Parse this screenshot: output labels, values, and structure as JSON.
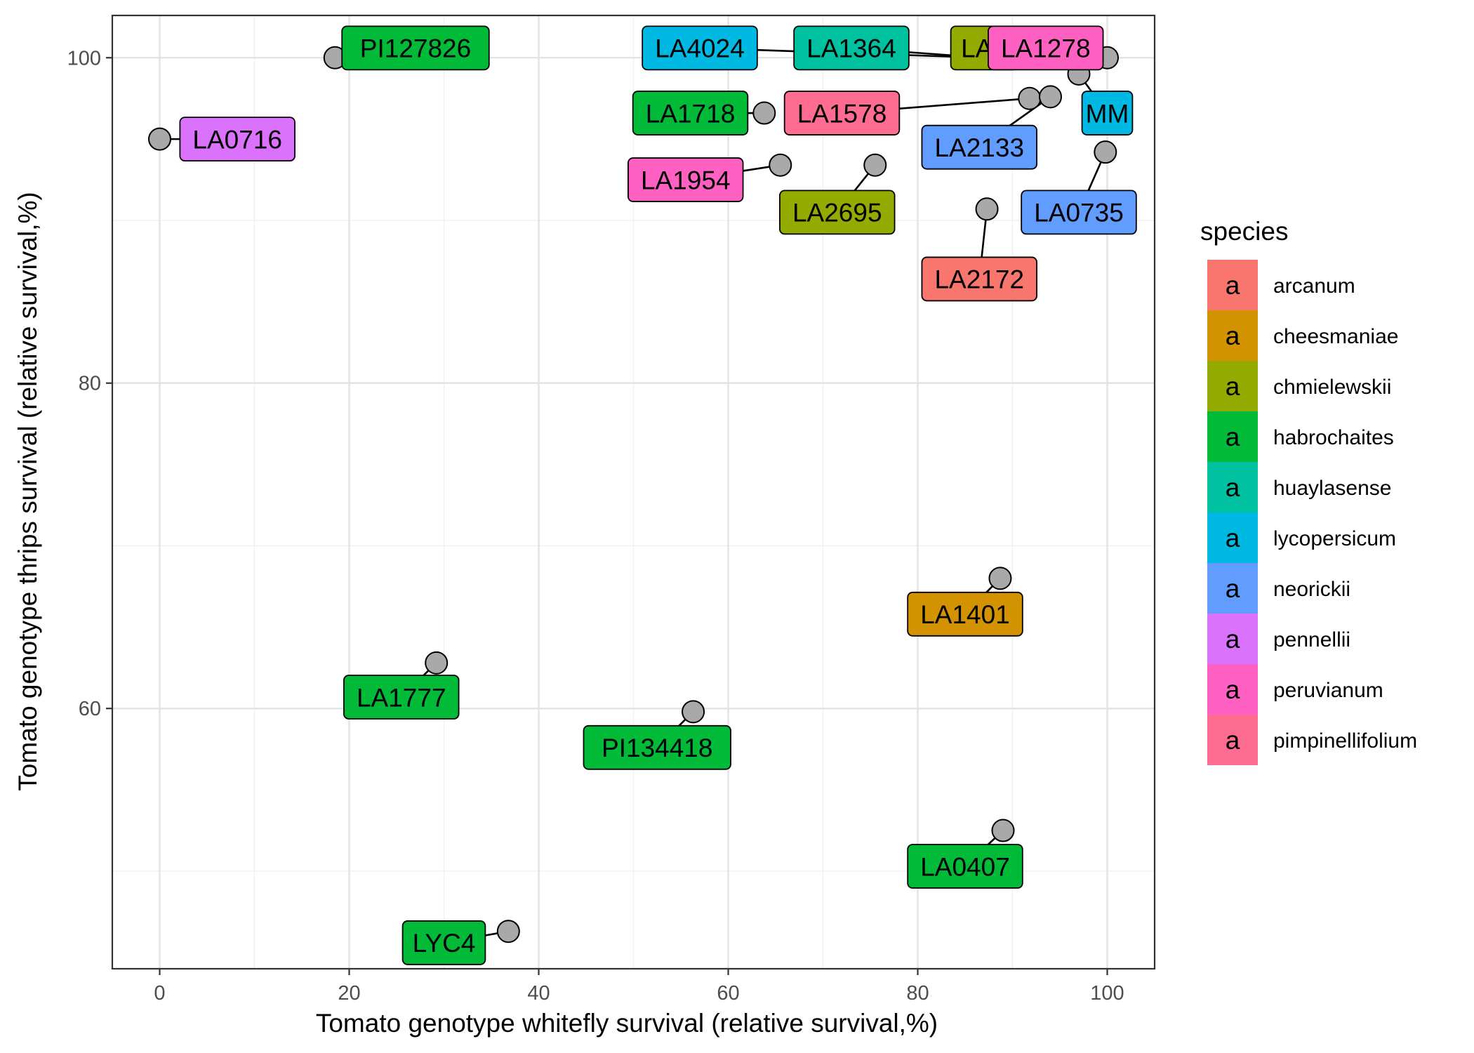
{
  "chart_data": {
    "type": "scatter",
    "title": "",
    "xlabel": "Tomato genotype whitefly survival (relative survival,%)",
    "ylabel": "Tomato genotype thrips survival (relative survival,%)",
    "xlim": [
      -5,
      105
    ],
    "ylim": [
      44,
      102.6
    ],
    "x_ticks": [
      0,
      20,
      40,
      60,
      80,
      100
    ],
    "y_ticks": [
      60,
      80,
      100
    ],
    "grid": true,
    "legend": {
      "title": "species",
      "position": "right",
      "key_glyph": "a",
      "entries": [
        {
          "name": "arcanum",
          "color": "#F8766D"
        },
        {
          "name": "cheesmaniae",
          "color": "#D39200"
        },
        {
          "name": "chmielewskii",
          "color": "#93AA00"
        },
        {
          "name": "habrochaites",
          "color": "#00BA38"
        },
        {
          "name": "huaylasense",
          "color": "#00C19F"
        },
        {
          "name": "lycopersicum",
          "color": "#00B9E3"
        },
        {
          "name": "neorickii",
          "color": "#619CFF"
        },
        {
          "name": "pennellii",
          "color": "#DB72FB"
        },
        {
          "name": "peruvianum",
          "color": "#FF61C3"
        },
        {
          "name": "pimpinellifolium",
          "color": "#FF6C91"
        }
      ]
    },
    "point_color": "#a9a9a9",
    "points": [
      {
        "label": "PI127826",
        "species": "habrochaites",
        "x": 18.5,
        "y": 100.0,
        "lx": 27.0,
        "ly": 100.6
      },
      {
        "label": "LA0716",
        "species": "pennellii",
        "x": 0.0,
        "y": 95.0,
        "lx": 8.2,
        "ly": 95.0
      },
      {
        "label": "LA4024",
        "species": "lycopersicum",
        "x": 87.0,
        "y": 100.0,
        "lx": 57.0,
        "ly": 100.6
      },
      {
        "label": "LA1364",
        "species": "huaylasense",
        "x": 87.0,
        "y": 100.0,
        "lx": 73.0,
        "ly": 100.6
      },
      {
        "label": "LA1",
        "species": "chmielewskii",
        "x": 87.0,
        "y": 100.0,
        "lx": 87.0,
        "ly": 100.6
      },
      {
        "label": "LA1278",
        "species": "peruvianum",
        "x": 100.0,
        "y": 100.0,
        "lx": 93.5,
        "ly": 100.6
      },
      {
        "label": "LA1718",
        "species": "habrochaites",
        "x": 63.8,
        "y": 96.6,
        "lx": 56.0,
        "ly": 96.6
      },
      {
        "label": "LA1578",
        "species": "pimpinellifolium",
        "x": 91.8,
        "y": 97.5,
        "lx": 72.0,
        "ly": 96.6
      },
      {
        "label": "MM",
        "species": "lycopersicum",
        "x": 97.0,
        "y": 99.0,
        "lx": 100.0,
        "ly": 96.6
      },
      {
        "label": "LA2133",
        "species": "neorickii",
        "x": 94.0,
        "y": 97.6,
        "lx": 86.5,
        "ly": 94.5
      },
      {
        "label": "LA1954",
        "species": "peruvianum",
        "x": 65.5,
        "y": 93.4,
        "lx": 55.5,
        "ly": 92.5
      },
      {
        "label": "LA2695",
        "species": "chmielewskii",
        "x": 75.5,
        "y": 93.4,
        "lx": 71.5,
        "ly": 90.5
      },
      {
        "label": "LA0735",
        "species": "neorickii",
        "x": 99.8,
        "y": 94.2,
        "lx": 97.0,
        "ly": 90.5
      },
      {
        "label": "LA2172",
        "species": "arcanum",
        "x": 87.3,
        "y": 90.7,
        "lx": 86.5,
        "ly": 86.4
      },
      {
        "label": "LA1401",
        "species": "cheesmaniae",
        "x": 88.7,
        "y": 68.0,
        "lx": 85.0,
        "ly": 65.8
      },
      {
        "label": "LA1777",
        "species": "habrochaites",
        "x": 29.2,
        "y": 62.8,
        "lx": 25.5,
        "ly": 60.7
      },
      {
        "label": "PI134418",
        "species": "habrochaites",
        "x": 56.3,
        "y": 59.8,
        "lx": 52.5,
        "ly": 57.6
      },
      {
        "label": "LA0407",
        "species": "habrochaites",
        "x": 89.0,
        "y": 52.5,
        "lx": 85.0,
        "ly": 50.3
      },
      {
        "label": "LYC4",
        "species": "habrochaites",
        "x": 36.8,
        "y": 46.3,
        "lx": 30.0,
        "ly": 45.6
      }
    ]
  }
}
